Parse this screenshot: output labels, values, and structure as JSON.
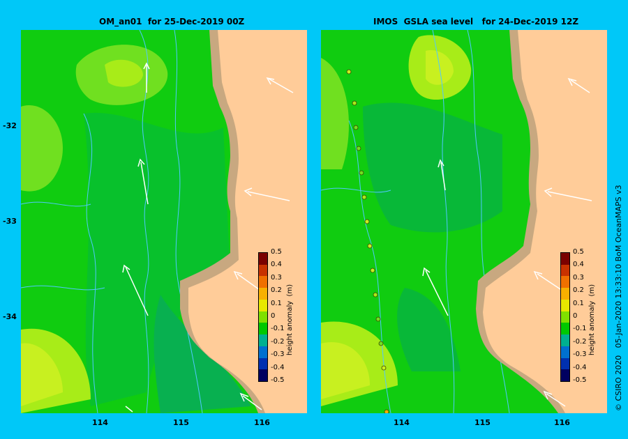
{
  "left_panel": {
    "title": "OM_an01  for 25-Dec-2019 00Z"
  },
  "right_panel": {
    "title": "IMOS  GSLA sea level   for 24-Dec-2019 12Z"
  },
  "axes": {
    "lat_ticks": [
      "-32",
      "-33",
      "-34"
    ],
    "lon_ticks": [
      "114",
      "115",
      "116"
    ]
  },
  "colorbar": {
    "title": "height anomaly  (m)",
    "labels": [
      "0.5",
      "0.4",
      "0.3",
      "0.2",
      "0.1",
      "0",
      "-0.1",
      "-0.2",
      "-0.3",
      "-0.4",
      "-0.5"
    ],
    "colors": [
      "#7a0000",
      "#c83200",
      "#f07000",
      "#f8b000",
      "#e8e800",
      "#80e000",
      "#00c800",
      "#00b090",
      "#0070d0",
      "#0030b0",
      "#000060"
    ]
  },
  "credit": "© CSIRO 2020   05-Jan-2020 13:33:10 BoM OceanMAPS v3",
  "colors": {
    "background": "#00c8f8",
    "land": "#ffcc99",
    "shelf": "#c8a880",
    "field_main": "#10cc10",
    "field_low": "#08b050",
    "field_high": "#c8f020",
    "contour": "#50c8ff"
  }
}
